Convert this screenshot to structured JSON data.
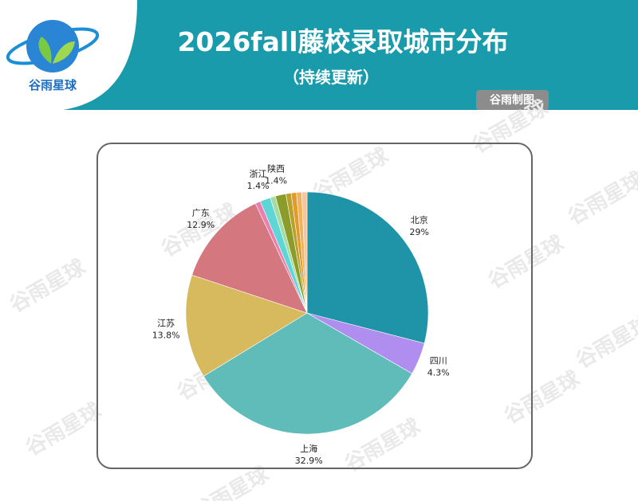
{
  "header": {
    "title": "2026fall藤校录取城市分布",
    "subtitle": "（持续更新）",
    "badge": "谷雨制图",
    "logo_text": "谷雨星球"
  },
  "watermark": "谷雨星球",
  "chart_data": {
    "type": "pie",
    "categories": [
      "北京",
      "四川",
      "上海",
      "江苏",
      "广东",
      null,
      "浙江",
      null,
      "陕西",
      null,
      null,
      null,
      null
    ],
    "values": [
      29,
      4.3,
      32.9,
      13.8,
      12.9,
      0.7,
      1.4,
      0.7,
      1.4,
      0.7,
      0.7,
      0.7,
      0.7
    ],
    "value_labels": [
      "29%",
      "4.3%",
      "32.9%",
      "13.8%",
      "12.9%",
      null,
      "1.4%",
      null,
      "1.4%",
      null,
      null,
      null,
      null
    ],
    "colors": [
      "#1f93a8",
      "#b08ef0",
      "#5fbcb8",
      "#d8ba5e",
      "#d4777e",
      "#ea7fb0",
      "#5ed6d6",
      "#a5dca0",
      "#8c9c2a",
      "#b6a12a",
      "#e29a2c",
      "#f0b25a",
      "#f6c59c"
    ]
  }
}
